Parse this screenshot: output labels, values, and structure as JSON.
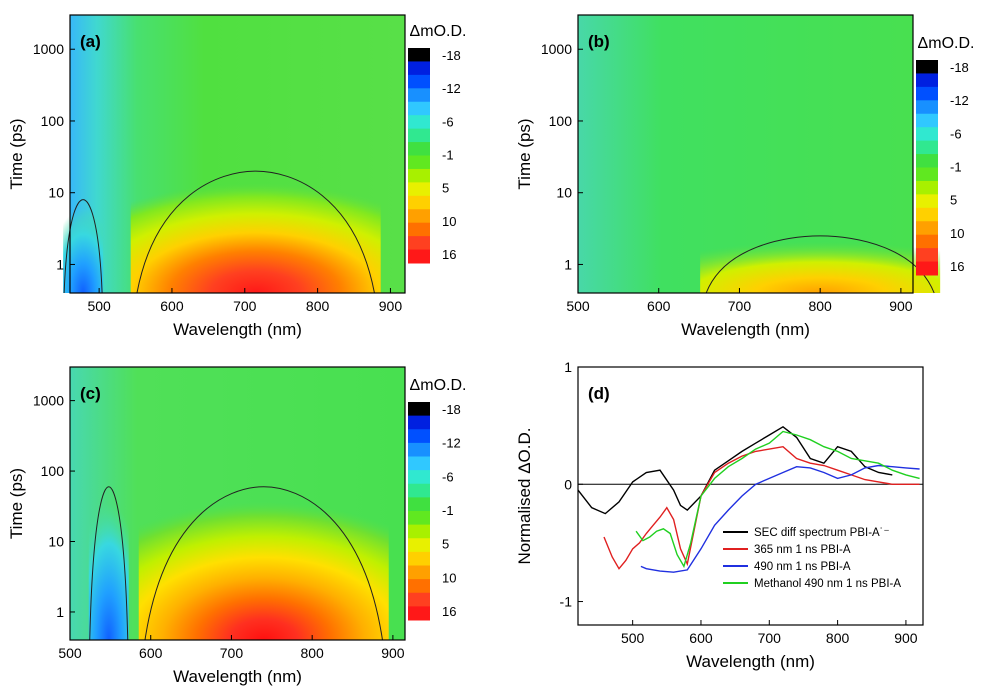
{
  "colorbar": {
    "title": "ΔmO.D.",
    "labels": [
      "-18",
      "-12",
      "-6",
      "-1",
      "5",
      "10",
      "16"
    ],
    "colors": [
      "#000000",
      "#0020e0",
      "#0050ff",
      "#1890ff",
      "#30c8ff",
      "#30e8d0",
      "#30e890",
      "#40e040",
      "#60e820",
      "#a8f000",
      "#e8f000",
      "#ffd000",
      "#ffa000",
      "#ff7000",
      "#ff4020",
      "#ff1818"
    ]
  },
  "chart_data": [
    {
      "type": "heatmap",
      "panel_label": "(a)",
      "xlabel": "Wavelength (nm)",
      "ylabel": "Time (ps)",
      "xlim": [
        460,
        920
      ],
      "ylim": [
        0.4,
        3000
      ],
      "yscale": "log",
      "xticks": [
        "500",
        "600",
        "700",
        "800",
        "900"
      ],
      "yticks": [
        "1",
        "10",
        "100",
        "1000"
      ],
      "features": [
        {
          "kind": "negative",
          "wavelength_nm": 478,
          "max_time_ps": 8,
          "peak_mOD": -12
        },
        {
          "kind": "positive",
          "wavelength_nm": 715,
          "max_time_ps": 20,
          "peak_mOD": 16
        }
      ]
    },
    {
      "type": "heatmap",
      "panel_label": "(b)",
      "xlabel": "Wavelength (nm)",
      "ylabel": "Time (ps)",
      "xlim": [
        500,
        915
      ],
      "ylim": [
        0.4,
        3000
      ],
      "yscale": "log",
      "xticks": [
        "500",
        "600",
        "700",
        "800",
        "900"
      ],
      "yticks": [
        "1",
        "10",
        "100",
        "1000"
      ],
      "features": [
        {
          "kind": "positive",
          "wavelength_nm": 800,
          "max_time_ps": 2.5,
          "peak_mOD": 5
        }
      ]
    },
    {
      "type": "heatmap",
      "panel_label": "(c)",
      "xlabel": "Wavelength (nm)",
      "ylabel": "Time (ps)",
      "xlim": [
        500,
        915
      ],
      "ylim": [
        0.4,
        3000
      ],
      "yscale": "log",
      "xticks": [
        "500",
        "600",
        "700",
        "800",
        "900"
      ],
      "yticks": [
        "1",
        "10",
        "100",
        "1000"
      ],
      "features": [
        {
          "kind": "negative",
          "wavelength_nm": 548,
          "max_time_ps": 60,
          "peak_mOD": -1
        },
        {
          "kind": "positive",
          "wavelength_nm": 740,
          "max_time_ps": 60,
          "peak_mOD": 16
        }
      ]
    },
    {
      "type": "line",
      "panel_label": "(d)",
      "xlabel": "Wavelength (nm)",
      "ylabel": "Normalised ΔO.D.",
      "xlim": [
        420,
        925
      ],
      "ylim": [
        -1.2,
        1
      ],
      "xticks": [
        "500",
        "600",
        "700",
        "800",
        "900"
      ],
      "yticks": [
        "-1",
        "0",
        "1"
      ],
      "series": [
        {
          "name": "SEC diff spectrum PBI-A˙⁻",
          "color": "#000000",
          "x": [
            420,
            440,
            460,
            480,
            500,
            520,
            540,
            560,
            570,
            580,
            600,
            620,
            640,
            660,
            680,
            700,
            720,
            740,
            760,
            780,
            800,
            820,
            840,
            860,
            880
          ],
          "y": [
            -0.05,
            -0.2,
            -0.25,
            -0.15,
            0.02,
            0.1,
            0.12,
            -0.05,
            -0.18,
            -0.22,
            -0.1,
            0.12,
            0.2,
            0.28,
            0.35,
            0.42,
            0.49,
            0.4,
            0.22,
            0.18,
            0.32,
            0.28,
            0.15,
            0.1,
            0.08
          ]
        },
        {
          "name": "365 nm 1 ns PBI-A",
          "color": "#e02020",
          "x": [
            458,
            470,
            480,
            490,
            500,
            510,
            520,
            530,
            540,
            550,
            560,
            570,
            580,
            600,
            620,
            640,
            660,
            680,
            700,
            720,
            740,
            760,
            780,
            800,
            820,
            840,
            860,
            880,
            900,
            920
          ],
          "y": [
            -0.45,
            -0.62,
            -0.72,
            -0.65,
            -0.55,
            -0.5,
            -0.42,
            -0.35,
            -0.28,
            -0.2,
            -0.3,
            -0.55,
            -0.68,
            -0.1,
            0.1,
            0.18,
            0.24,
            0.28,
            0.3,
            0.32,
            0.22,
            0.18,
            0.16,
            0.12,
            0.08,
            0.04,
            0.02,
            0.0,
            0.0,
            0.0
          ]
        },
        {
          "name": "490 nm 1 ns PBI-A",
          "color": "#2030e0",
          "x": [
            512,
            520,
            540,
            560,
            580,
            600,
            620,
            640,
            660,
            680,
            700,
            720,
            740,
            760,
            780,
            800,
            820,
            840,
            860,
            880,
            900,
            920
          ],
          "y": [
            -0.7,
            -0.72,
            -0.74,
            -0.75,
            -0.73,
            -0.55,
            -0.35,
            -0.22,
            -0.1,
            0.0,
            0.05,
            0.1,
            0.15,
            0.14,
            0.1,
            0.05,
            0.08,
            0.14,
            0.16,
            0.15,
            0.14,
            0.13
          ]
        },
        {
          "name": "Methanol 490 nm 1 ns PBI-A",
          "color": "#20d020",
          "x": [
            505,
            515,
            525,
            535,
            545,
            555,
            565,
            575,
            585,
            600,
            620,
            640,
            660,
            680,
            700,
            720,
            740,
            760,
            780,
            800,
            820,
            840,
            860,
            880,
            900,
            920
          ],
          "y": [
            -0.4,
            -0.48,
            -0.45,
            -0.4,
            -0.38,
            -0.42,
            -0.6,
            -0.7,
            -0.5,
            -0.1,
            0.05,
            0.15,
            0.22,
            0.3,
            0.35,
            0.45,
            0.42,
            0.38,
            0.32,
            0.28,
            0.22,
            0.2,
            0.18,
            0.12,
            0.08,
            0.05
          ]
        }
      ]
    }
  ]
}
